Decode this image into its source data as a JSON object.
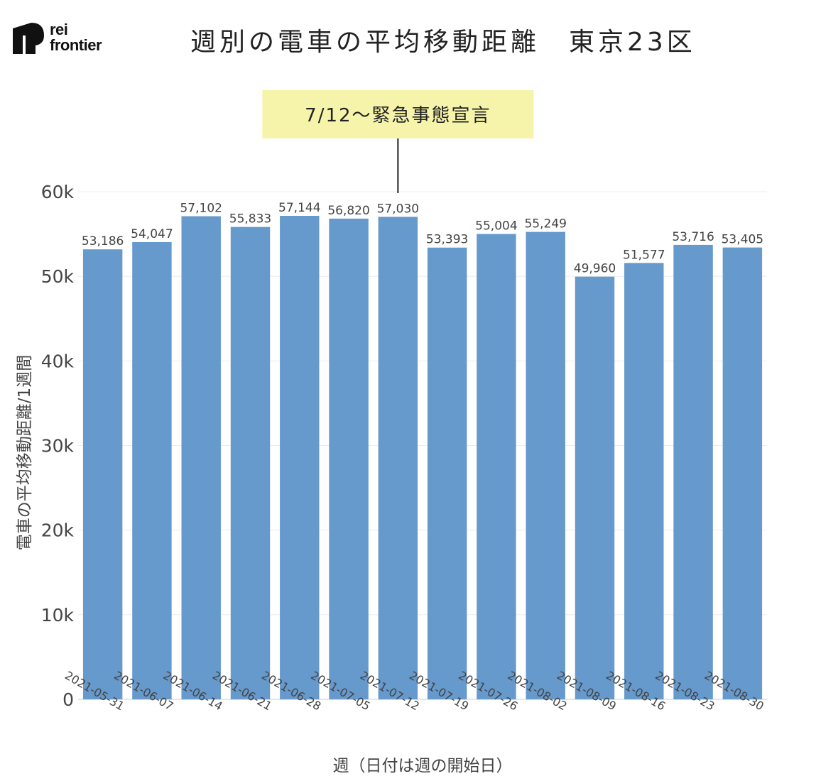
{
  "logo": {
    "line1": "rei",
    "line2": "frontier"
  },
  "title": "週別の電車の平均移動距離　東京23区",
  "chart_data": {
    "type": "bar",
    "categories": [
      "2021-05-31",
      "2021-06-07",
      "2021-06-14",
      "2021-06-21",
      "2021-06-28",
      "2021-07-05",
      "2021-07-12",
      "2021-07-19",
      "2021-07-26",
      "2021-08-02",
      "2021-08-09",
      "2021-08-16",
      "2021-08-23",
      "2021-08-30"
    ],
    "values": [
      53186,
      54047,
      57102,
      55833,
      57144,
      56820,
      57030,
      53393,
      55004,
      55249,
      49960,
      51577,
      53716,
      53405
    ],
    "value_labels": [
      "53,186",
      "54,047",
      "57,102",
      "55,833",
      "57,144",
      "56,820",
      "57,030",
      "53,393",
      "55,004",
      "55,249",
      "49,960",
      "51,577",
      "53,716",
      "53,405"
    ],
    "xlabel": "週（日付は週の開始日）",
    "ylabel": "電車の平均移動距離/1週間",
    "ylim": [
      0,
      60000
    ],
    "yticks": [
      0,
      10000,
      20000,
      30000,
      40000,
      50000,
      60000
    ],
    "ytick_labels": [
      "0",
      "10k",
      "20k",
      "30k",
      "40k",
      "50k",
      "60k"
    ],
    "grid": true,
    "bar_color": "#6699cc",
    "annotation": {
      "text": "7/12〜緊急事態宣言",
      "category": "2021-07-12",
      "background": "#f6f3aa"
    }
  }
}
